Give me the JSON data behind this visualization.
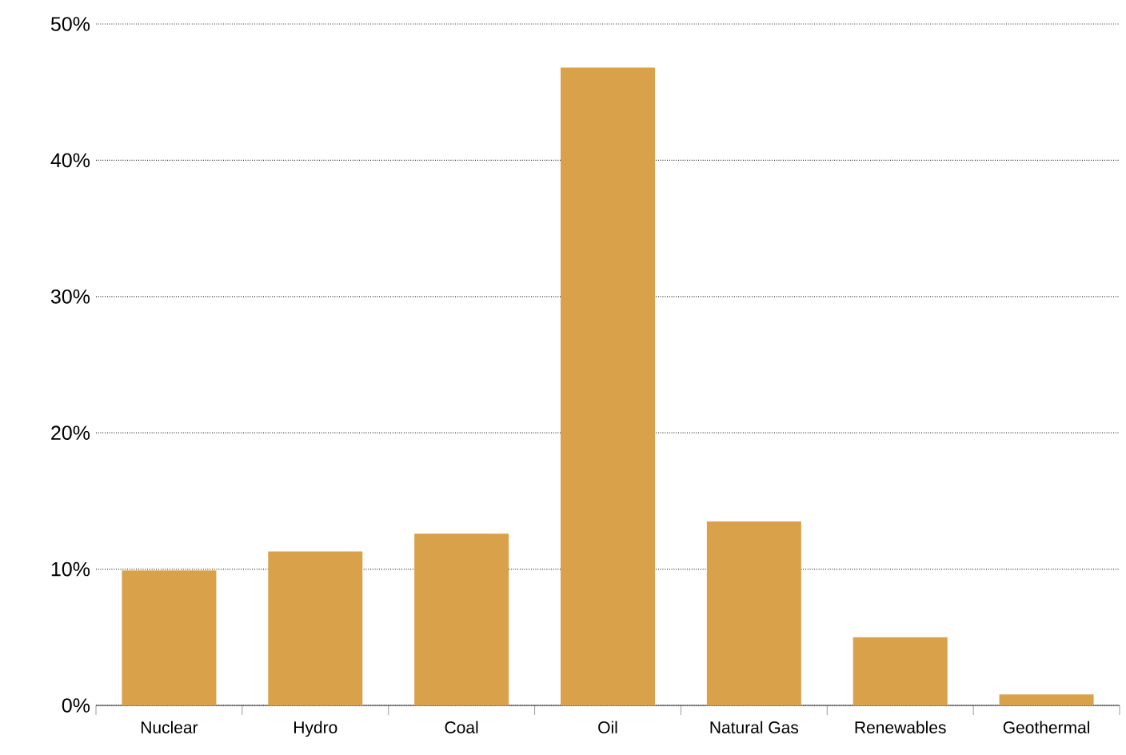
{
  "chart_data": {
    "type": "bar",
    "categories": [
      "Nuclear",
      "Hydro",
      "Coal",
      "Oil",
      "Natural Gas",
      "Renewables",
      "Geothermal"
    ],
    "values": [
      9.9,
      11.3,
      12.6,
      46.8,
      13.5,
      5.0,
      0.8
    ],
    "color": "#d9a24a",
    "ylim": [
      0,
      50
    ],
    "yticks": [
      {
        "value": 0,
        "label": "0%"
      },
      {
        "value": 10,
        "label": "10%"
      },
      {
        "value": 20,
        "label": "20%"
      },
      {
        "value": 30,
        "label": "30%"
      },
      {
        "value": 40,
        "label": "40%"
      },
      {
        "value": 50,
        "label": "50%"
      }
    ],
    "grid": "y"
  }
}
